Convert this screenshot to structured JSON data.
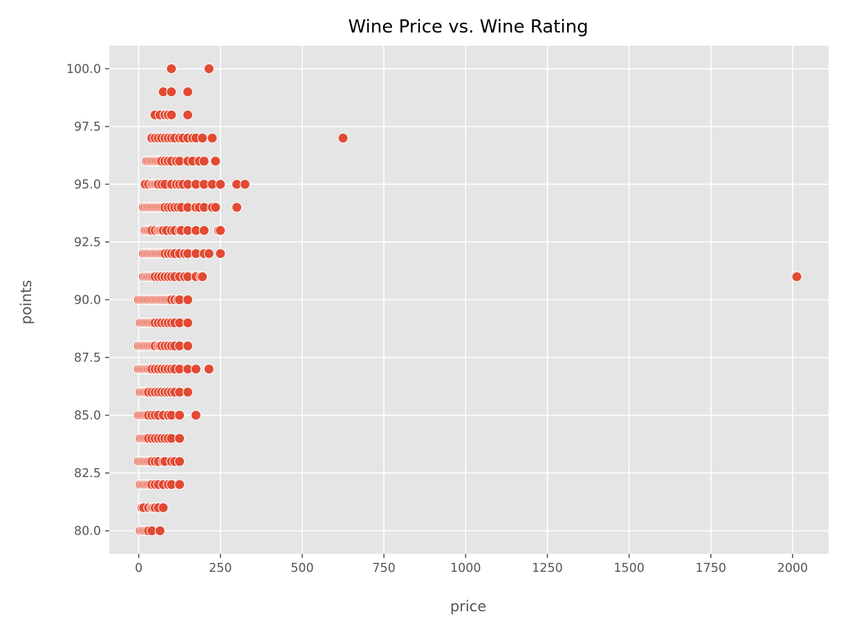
{
  "chart_data": {
    "type": "scatter",
    "title": "Wine Price vs. Wine Rating",
    "xlabel": "price",
    "ylabel": "points",
    "xlim": [
      -90,
      2110
    ],
    "ylim": [
      79,
      101
    ],
    "xticks": [
      0,
      250,
      500,
      750,
      1000,
      1250,
      1500,
      1750,
      2000
    ],
    "xtick_labels": [
      "0",
      "250",
      "500",
      "750",
      "1000",
      "1250",
      "1500",
      "1750",
      "2000"
    ],
    "yticks": [
      80.0,
      82.5,
      85.0,
      87.5,
      90.0,
      92.5,
      95.0,
      97.5,
      100.0
    ],
    "ytick_labels": [
      "80.0",
      "82.5",
      "85.0",
      "87.5",
      "90.0",
      "92.5",
      "95.0",
      "97.5",
      "100.0"
    ],
    "grid": true,
    "background": "#e5e5e5",
    "marker_color": "#e24a33",
    "series": [
      {
        "points": [
          [
            100,
            100
          ],
          [
            215,
            100
          ],
          [
            75,
            99
          ],
          [
            100,
            99
          ],
          [
            150,
            99
          ],
          [
            50,
            98
          ],
          [
            65,
            98
          ],
          [
            80,
            98
          ],
          [
            90,
            98
          ],
          [
            100,
            98
          ],
          [
            150,
            98
          ],
          [
            40,
            97
          ],
          [
            50,
            97
          ],
          [
            60,
            97
          ],
          [
            70,
            97
          ],
          [
            80,
            97
          ],
          [
            90,
            97
          ],
          [
            100,
            97
          ],
          [
            110,
            97
          ],
          [
            125,
            97
          ],
          [
            135,
            97
          ],
          [
            150,
            97
          ],
          [
            165,
            97
          ],
          [
            175,
            97
          ],
          [
            195,
            97
          ],
          [
            225,
            97
          ],
          [
            625,
            97
          ],
          [
            25,
            96
          ],
          [
            30,
            96
          ],
          [
            35,
            96
          ],
          [
            40,
            96
          ],
          [
            45,
            96
          ],
          [
            50,
            96
          ],
          [
            55,
            96
          ],
          [
            60,
            96
          ],
          [
            65,
            96
          ],
          [
            70,
            96
          ],
          [
            80,
            96
          ],
          [
            90,
            96
          ],
          [
            100,
            96
          ],
          [
            115,
            96
          ],
          [
            125,
            96
          ],
          [
            150,
            96
          ],
          [
            165,
            96
          ],
          [
            185,
            96
          ],
          [
            200,
            96
          ],
          [
            235,
            96
          ],
          [
            20,
            95
          ],
          [
            30,
            95
          ],
          [
            40,
            95
          ],
          [
            45,
            95
          ],
          [
            50,
            95
          ],
          [
            55,
            95
          ],
          [
            60,
            95
          ],
          [
            70,
            95
          ],
          [
            80,
            95
          ],
          [
            100,
            95
          ],
          [
            115,
            95
          ],
          [
            125,
            95
          ],
          [
            135,
            95
          ],
          [
            150,
            95
          ],
          [
            175,
            95
          ],
          [
            200,
            95
          ],
          [
            225,
            95
          ],
          [
            250,
            95
          ],
          [
            300,
            95
          ],
          [
            325,
            95
          ],
          [
            15,
            94
          ],
          [
            20,
            94
          ],
          [
            25,
            94
          ],
          [
            30,
            94
          ],
          [
            35,
            94
          ],
          [
            40,
            94
          ],
          [
            45,
            94
          ],
          [
            50,
            94
          ],
          [
            55,
            94
          ],
          [
            60,
            94
          ],
          [
            65,
            94
          ],
          [
            70,
            94
          ],
          [
            75,
            94
          ],
          [
            80,
            94
          ],
          [
            90,
            94
          ],
          [
            100,
            94
          ],
          [
            110,
            94
          ],
          [
            120,
            94
          ],
          [
            130,
            94
          ],
          [
            150,
            94
          ],
          [
            175,
            94
          ],
          [
            185,
            94
          ],
          [
            200,
            94
          ],
          [
            225,
            94
          ],
          [
            235,
            94
          ],
          [
            300,
            94
          ],
          [
            20,
            93
          ],
          [
            25,
            93
          ],
          [
            30,
            93
          ],
          [
            35,
            93
          ],
          [
            40,
            93
          ],
          [
            50,
            93
          ],
          [
            60,
            93
          ],
          [
            65,
            93
          ],
          [
            70,
            93
          ],
          [
            75,
            93
          ],
          [
            85,
            93
          ],
          [
            100,
            93
          ],
          [
            110,
            93
          ],
          [
            125,
            93
          ],
          [
            130,
            93
          ],
          [
            150,
            93
          ],
          [
            175,
            93
          ],
          [
            200,
            93
          ],
          [
            245,
            93
          ],
          [
            250,
            93
          ],
          [
            15,
            92
          ],
          [
            20,
            92
          ],
          [
            25,
            92
          ],
          [
            30,
            92
          ],
          [
            35,
            92
          ],
          [
            40,
            92
          ],
          [
            45,
            92
          ],
          [
            50,
            92
          ],
          [
            55,
            92
          ],
          [
            60,
            92
          ],
          [
            65,
            92
          ],
          [
            70,
            92
          ],
          [
            75,
            92
          ],
          [
            80,
            92
          ],
          [
            90,
            92
          ],
          [
            100,
            92
          ],
          [
            110,
            92
          ],
          [
            125,
            92
          ],
          [
            140,
            92
          ],
          [
            150,
            92
          ],
          [
            175,
            92
          ],
          [
            200,
            92
          ],
          [
            215,
            92
          ],
          [
            250,
            92
          ],
          [
            15,
            91
          ],
          [
            20,
            91
          ],
          [
            25,
            91
          ],
          [
            30,
            91
          ],
          [
            35,
            91
          ],
          [
            40,
            91
          ],
          [
            45,
            91
          ],
          [
            50,
            91
          ],
          [
            60,
            91
          ],
          [
            70,
            91
          ],
          [
            80,
            91
          ],
          [
            90,
            91
          ],
          [
            100,
            91
          ],
          [
            110,
            91
          ],
          [
            125,
            91
          ],
          [
            140,
            91
          ],
          [
            150,
            91
          ],
          [
            175,
            91
          ],
          [
            190,
            91
          ],
          [
            195,
            91
          ],
          [
            2013,
            91
          ],
          [
            0,
            90
          ],
          [
            5,
            90
          ],
          [
            10,
            90
          ],
          [
            15,
            90
          ],
          [
            20,
            90
          ],
          [
            25,
            90
          ],
          [
            30,
            90
          ],
          [
            35,
            90
          ],
          [
            40,
            90
          ],
          [
            45,
            90
          ],
          [
            50,
            90
          ],
          [
            55,
            90
          ],
          [
            60,
            90
          ],
          [
            65,
            90
          ],
          [
            70,
            90
          ],
          [
            75,
            90
          ],
          [
            80,
            90
          ],
          [
            85,
            90
          ],
          [
            90,
            90
          ],
          [
            95,
            90
          ],
          [
            100,
            90
          ],
          [
            110,
            90
          ],
          [
            120,
            90
          ],
          [
            125,
            90
          ],
          [
            150,
            90
          ],
          [
            5,
            89
          ],
          [
            10,
            89
          ],
          [
            15,
            89
          ],
          [
            20,
            89
          ],
          [
            25,
            89
          ],
          [
            30,
            89
          ],
          [
            35,
            89
          ],
          [
            40,
            89
          ],
          [
            45,
            89
          ],
          [
            50,
            89
          ],
          [
            60,
            89
          ],
          [
            70,
            89
          ],
          [
            80,
            89
          ],
          [
            90,
            89
          ],
          [
            100,
            89
          ],
          [
            110,
            89
          ],
          [
            125,
            89
          ],
          [
            150,
            89
          ],
          [
            0,
            88
          ],
          [
            5,
            88
          ],
          [
            10,
            88
          ],
          [
            15,
            88
          ],
          [
            20,
            88
          ],
          [
            25,
            88
          ],
          [
            30,
            88
          ],
          [
            35,
            88
          ],
          [
            40,
            88
          ],
          [
            45,
            88
          ],
          [
            50,
            88
          ],
          [
            60,
            88
          ],
          [
            65,
            88
          ],
          [
            70,
            88
          ],
          [
            80,
            88
          ],
          [
            90,
            88
          ],
          [
            100,
            88
          ],
          [
            110,
            88
          ],
          [
            125,
            88
          ],
          [
            150,
            88
          ],
          [
            0,
            87
          ],
          [
            5,
            87
          ],
          [
            10,
            87
          ],
          [
            15,
            87
          ],
          [
            20,
            87
          ],
          [
            25,
            87
          ],
          [
            30,
            87
          ],
          [
            35,
            87
          ],
          [
            40,
            87
          ],
          [
            50,
            87
          ],
          [
            60,
            87
          ],
          [
            70,
            87
          ],
          [
            80,
            87
          ],
          [
            90,
            87
          ],
          [
            100,
            87
          ],
          [
            110,
            87
          ],
          [
            125,
            87
          ],
          [
            150,
            87
          ],
          [
            175,
            87
          ],
          [
            215,
            87
          ],
          [
            5,
            86
          ],
          [
            10,
            86
          ],
          [
            15,
            86
          ],
          [
            20,
            86
          ],
          [
            25,
            86
          ],
          [
            30,
            86
          ],
          [
            40,
            86
          ],
          [
            50,
            86
          ],
          [
            60,
            86
          ],
          [
            70,
            86
          ],
          [
            80,
            86
          ],
          [
            90,
            86
          ],
          [
            100,
            86
          ],
          [
            110,
            86
          ],
          [
            125,
            86
          ],
          [
            150,
            86
          ],
          [
            0,
            85
          ],
          [
            5,
            85
          ],
          [
            10,
            85
          ],
          [
            15,
            85
          ],
          [
            20,
            85
          ],
          [
            25,
            85
          ],
          [
            30,
            85
          ],
          [
            40,
            85
          ],
          [
            50,
            85
          ],
          [
            60,
            85
          ],
          [
            75,
            85
          ],
          [
            90,
            85
          ],
          [
            100,
            85
          ],
          [
            125,
            85
          ],
          [
            175,
            85
          ],
          [
            5,
            84
          ],
          [
            10,
            84
          ],
          [
            15,
            84
          ],
          [
            20,
            84
          ],
          [
            25,
            84
          ],
          [
            30,
            84
          ],
          [
            40,
            84
          ],
          [
            50,
            84
          ],
          [
            60,
            84
          ],
          [
            70,
            84
          ],
          [
            80,
            84
          ],
          [
            90,
            84
          ],
          [
            100,
            84
          ],
          [
            125,
            84
          ],
          [
            0,
            83
          ],
          [
            5,
            83
          ],
          [
            10,
            83
          ],
          [
            15,
            83
          ],
          [
            20,
            83
          ],
          [
            25,
            83
          ],
          [
            30,
            83
          ],
          [
            35,
            83
          ],
          [
            40,
            83
          ],
          [
            50,
            83
          ],
          [
            60,
            83
          ],
          [
            75,
            83
          ],
          [
            80,
            83
          ],
          [
            100,
            83
          ],
          [
            110,
            83
          ],
          [
            125,
            83
          ],
          [
            5,
            82
          ],
          [
            10,
            82
          ],
          [
            15,
            82
          ],
          [
            20,
            82
          ],
          [
            25,
            82
          ],
          [
            30,
            82
          ],
          [
            35,
            82
          ],
          [
            40,
            82
          ],
          [
            50,
            82
          ],
          [
            60,
            82
          ],
          [
            75,
            82
          ],
          [
            90,
            82
          ],
          [
            100,
            82
          ],
          [
            125,
            82
          ],
          [
            10,
            81
          ],
          [
            15,
            81
          ],
          [
            30,
            81
          ],
          [
            40,
            81
          ],
          [
            45,
            81
          ],
          [
            50,
            81
          ],
          [
            60,
            81
          ],
          [
            75,
            81
          ],
          [
            5,
            80
          ],
          [
            10,
            80
          ],
          [
            15,
            80
          ],
          [
            20,
            80
          ],
          [
            25,
            80
          ],
          [
            30,
            80
          ],
          [
            40,
            80
          ],
          [
            65,
            80
          ]
        ]
      }
    ]
  }
}
